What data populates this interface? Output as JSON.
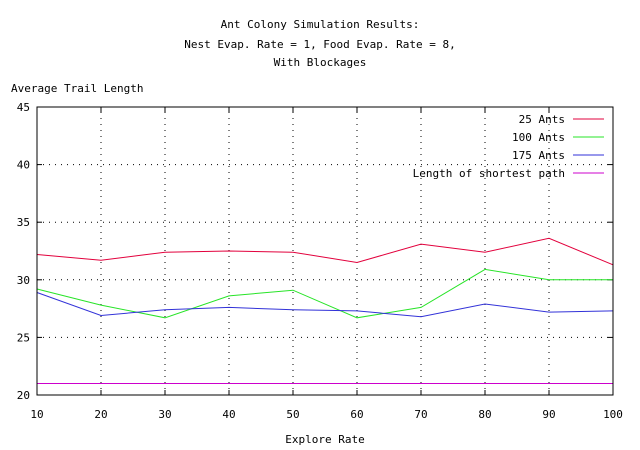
{
  "chart_data": {
    "type": "line",
    "title_lines": [
      "Ant Colony Simulation Results:",
      "Nest Evap. Rate = 1, Food Evap. Rate = 8,",
      "With Blockages"
    ],
    "xlabel": "Explore Rate",
    "ylabel": "Average Trail Length",
    "x": [
      10,
      20,
      30,
      40,
      50,
      60,
      70,
      80,
      90,
      100
    ],
    "xlim": [
      10,
      100
    ],
    "ylim": [
      20,
      45
    ],
    "xticks": [
      10,
      20,
      30,
      40,
      50,
      60,
      70,
      80,
      90,
      100
    ],
    "yticks": [
      20,
      25,
      30,
      35,
      40,
      45
    ],
    "grid": true,
    "legend_position": "top-right",
    "series": [
      {
        "name": "25 Ants",
        "color": "#e2003c",
        "values": [
          32.2,
          31.7,
          32.4,
          32.5,
          32.4,
          31.5,
          33.1,
          32.4,
          33.6,
          31.3
        ]
      },
      {
        "name": "100 Ants",
        "color": "#27e427",
        "values": [
          29.2,
          27.8,
          26.7,
          28.6,
          29.1,
          26.7,
          27.6,
          30.9,
          30.0,
          30.0
        ]
      },
      {
        "name": "175 Ants",
        "color": "#3232d8",
        "values": [
          28.9,
          26.9,
          27.4,
          27.6,
          27.4,
          27.3,
          26.8,
          27.9,
          27.2,
          27.3
        ]
      },
      {
        "name": "Length of shortest path",
        "color": "#cc00cc",
        "values": [
          21,
          21,
          21,
          21,
          21,
          21,
          21,
          21,
          21,
          21
        ]
      }
    ]
  }
}
